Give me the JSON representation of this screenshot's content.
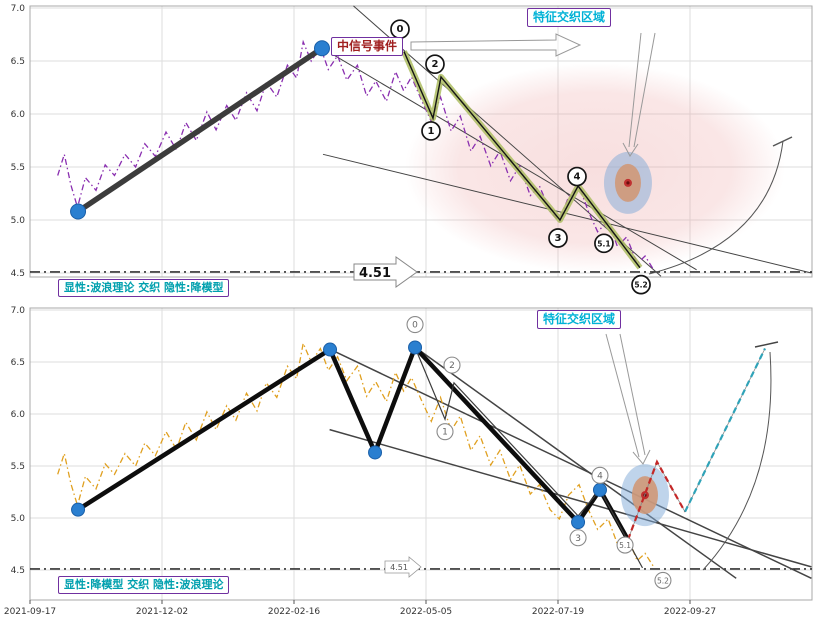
{
  "x_axis": {
    "labels": [
      "2021-09-17",
      "2021-12-02",
      "2022-02-16",
      "2022-05-05",
      "2022-07-19",
      "2022-09-27"
    ]
  },
  "y_axis": {
    "labels": [
      "7.0",
      "6.5",
      "6.0",
      "5.5",
      "5.0",
      "4.5"
    ],
    "values": [
      7.0,
      6.5,
      6.0,
      5.5,
      5.0,
      4.5
    ]
  },
  "panels": {
    "top": {
      "legend": "显性:波浪理论 交织 隐性:降模型",
      "signal_label": "中信号事件",
      "region_label": "特征交织区域",
      "hline_label": "4.51",
      "hline_value": 4.51
    },
    "bottom": {
      "legend": "显性:降模型 交织 隐性:波浪理论",
      "region_label": "特征交织区域",
      "hline_label": "4.51",
      "hline_value": 4.51
    }
  },
  "colors": {
    "purple_border": "#7030a0",
    "teal_text": "#00a0ae",
    "cyan_text": "#00b2d6",
    "signal_text": "#a02020",
    "price_top": "#8a2fb0",
    "price_bottom": "#e0a020",
    "model_dark": "#3c3c3c",
    "model_black": "#0d0d0d",
    "wave_halo": "#adbd62",
    "dot_blue": "#2a7fd0",
    "dot_edge": "#1a5fa8",
    "proj_red": "#c42828",
    "proj_teal": "#2fa3b8",
    "region_pink": "#eba0a0",
    "target_blue": "#7fa9d8",
    "target_tan": "#cf9878",
    "target_red": "#c03030"
  },
  "chart_data": [
    {
      "type": "line",
      "title": "",
      "y_range": [
        4.5,
        7.0
      ],
      "x_tick_labels": [
        "2021-09-17",
        "2021-12-02",
        "2022-02-16",
        "2022-05-05",
        "2022-07-19",
        "2022-09-27"
      ],
      "hline": 4.51,
      "annotations": [
        "中信号事件",
        "特征交织区域",
        "4.51",
        "显性:波浪理论 交织 隐性:降模型"
      ],
      "series": [
        {
          "name": "price-line-top",
          "style": "dashdot",
          "color": "#8a2fb0",
          "points": [
            [
              0.21,
              5.42
            ],
            [
              0.26,
              5.62
            ],
            [
              0.31,
              5.33
            ],
            [
              0.36,
              5.12
            ],
            [
              0.42,
              5.4
            ],
            [
              0.5,
              5.28
            ],
            [
              0.57,
              5.52
            ],
            [
              0.64,
              5.42
            ],
            [
              0.72,
              5.62
            ],
            [
              0.8,
              5.5
            ],
            [
              0.87,
              5.72
            ],
            [
              0.95,
              5.6
            ],
            [
              1.03,
              5.83
            ],
            [
              1.11,
              5.66
            ],
            [
              1.18,
              5.92
            ],
            [
              1.26,
              5.75
            ],
            [
              1.34,
              6.02
            ],
            [
              1.41,
              5.85
            ],
            [
              1.49,
              6.08
            ],
            [
              1.56,
              5.94
            ],
            [
              1.64,
              6.2
            ],
            [
              1.72,
              6.03
            ],
            [
              1.79,
              6.3
            ],
            [
              1.87,
              6.16
            ],
            [
              1.95,
              6.46
            ],
            [
              2.02,
              6.34
            ],
            [
              2.07,
              6.68
            ],
            [
              2.13,
              6.5
            ],
            [
              2.2,
              6.63
            ],
            [
              2.26,
              6.42
            ],
            [
              2.33,
              6.55
            ],
            [
              2.4,
              6.32
            ],
            [
              2.48,
              6.46
            ],
            [
              2.55,
              6.17
            ],
            [
              2.62,
              6.31
            ],
            [
              2.7,
              6.12
            ],
            [
              2.77,
              6.4
            ],
            [
              2.83,
              6.22
            ],
            [
              2.89,
              6.35
            ],
            [
              2.97,
              6.12
            ],
            [
              3.04,
              5.93
            ],
            [
              3.11,
              6.16
            ],
            [
              3.19,
              5.84
            ],
            [
              3.26,
              5.98
            ],
            [
              3.34,
              5.65
            ],
            [
              3.41,
              5.79
            ],
            [
              3.49,
              5.51
            ],
            [
              3.56,
              5.65
            ],
            [
              3.64,
              5.37
            ],
            [
              3.71,
              5.51
            ],
            [
              3.79,
              5.23
            ],
            [
              3.86,
              5.32
            ],
            [
              3.94,
              5.08
            ],
            [
              4.01,
              4.99
            ],
            [
              4.08,
              5.22
            ],
            [
              4.16,
              5.32
            ],
            [
              4.23,
              5.08
            ],
            [
              4.3,
              4.89
            ],
            [
              4.38,
              4.99
            ],
            [
              4.45,
              4.75
            ],
            [
              4.52,
              4.84
            ],
            [
              4.6,
              4.59
            ],
            [
              4.66,
              4.66
            ],
            [
              4.72,
              4.54
            ]
          ]
        },
        {
          "name": "impulse-up-line",
          "style": "thick",
          "color": "#3c3c3c",
          "points": [
            [
              0.364,
              5.08
            ],
            [
              2.212,
              6.62
            ]
          ]
        },
        {
          "name": "wave-0-5-line",
          "style": "wave",
          "color": "#adbd62",
          "points": [
            [
              2.833,
              6.59
            ],
            [
              3.053,
              5.96
            ],
            [
              3.114,
              6.35
            ],
            [
              4.015,
              5.0
            ],
            [
              4.152,
              5.32
            ],
            [
              4.621,
              4.55
            ]
          ]
        }
      ],
      "pivots": [
        [
          0.364,
          5.08
        ],
        [
          2.212,
          6.62
        ]
      ],
      "markers": [
        {
          "l": "0",
          "t": 2.803,
          "p": 6.8
        },
        {
          "l": "2",
          "t": 3.068,
          "p": 6.47
        },
        {
          "l": "1",
          "t": 3.038,
          "p": 5.84
        },
        {
          "l": "3",
          "t": 4.0,
          "p": 4.83
        },
        {
          "l": "4",
          "t": 4.144,
          "p": 5.41
        },
        {
          "l": "5.1",
          "t": 4.348,
          "p": 4.78
        },
        {
          "l": "5.2",
          "t": 4.629,
          "p": 4.39
        }
      ],
      "trendlines": [
        {
          "points": [
            [
              2.31,
              6.55
            ],
            [
              5.05,
              4.53
            ]
          ]
        },
        {
          "points": [
            [
              2.22,
              5.62
            ],
            [
              5.92,
              4.5
            ]
          ]
        },
        {
          "points": [
            [
              2.45,
              7.02
            ],
            [
              4.78,
              4.47
            ]
          ]
        }
      ],
      "regions": {
        "halo": {
          "t": 4.28,
          "p": 5.49,
          "rt": 1.44,
          "rp": 0.99
        },
        "target": {
          "t": 4.53,
          "p": 5.35
        }
      }
    },
    {
      "type": "line",
      "title": "",
      "y_range": [
        4.5,
        7.0
      ],
      "x_tick_labels": [
        "2021-09-17",
        "2021-12-02",
        "2022-02-16",
        "2022-05-05",
        "2022-07-19",
        "2022-09-27"
      ],
      "hline": 4.51,
      "annotations": [
        "特征交织区域",
        "4.51",
        "显性:降模型 交织 隐性:波浪理论"
      ],
      "series": [
        {
          "name": "price-line-bottom",
          "style": "dashdot",
          "color": "#e0a020",
          "points": [
            [
              0.21,
              5.42
            ],
            [
              0.26,
              5.62
            ],
            [
              0.31,
              5.33
            ],
            [
              0.36,
              5.12
            ],
            [
              0.42,
              5.4
            ],
            [
              0.5,
              5.28
            ],
            [
              0.57,
              5.52
            ],
            [
              0.64,
              5.42
            ],
            [
              0.72,
              5.62
            ],
            [
              0.8,
              5.5
            ],
            [
              0.87,
              5.72
            ],
            [
              0.95,
              5.6
            ],
            [
              1.03,
              5.83
            ],
            [
              1.11,
              5.66
            ],
            [
              1.18,
              5.92
            ],
            [
              1.26,
              5.75
            ],
            [
              1.34,
              6.02
            ],
            [
              1.41,
              5.85
            ],
            [
              1.49,
              6.08
            ],
            [
              1.56,
              5.94
            ],
            [
              1.64,
              6.2
            ],
            [
              1.72,
              6.03
            ],
            [
              1.79,
              6.3
            ],
            [
              1.87,
              6.16
            ],
            [
              1.95,
              6.46
            ],
            [
              2.02,
              6.34
            ],
            [
              2.07,
              6.68
            ],
            [
              2.13,
              6.5
            ],
            [
              2.2,
              6.63
            ],
            [
              2.26,
              6.42
            ],
            [
              2.33,
              6.55
            ],
            [
              2.4,
              6.32
            ],
            [
              2.48,
              6.46
            ],
            [
              2.55,
              6.17
            ],
            [
              2.62,
              6.31
            ],
            [
              2.7,
              6.12
            ],
            [
              2.77,
              6.4
            ],
            [
              2.83,
              6.22
            ],
            [
              2.89,
              6.35
            ],
            [
              2.97,
              6.12
            ],
            [
              3.04,
              5.93
            ],
            [
              3.11,
              6.16
            ],
            [
              3.19,
              5.84
            ],
            [
              3.26,
              5.98
            ],
            [
              3.34,
              5.65
            ],
            [
              3.41,
              5.79
            ],
            [
              3.49,
              5.51
            ],
            [
              3.56,
              5.65
            ],
            [
              3.64,
              5.37
            ],
            [
              3.71,
              5.51
            ],
            [
              3.79,
              5.23
            ],
            [
              3.86,
              5.32
            ],
            [
              3.94,
              5.08
            ],
            [
              4.01,
              4.99
            ],
            [
              4.08,
              5.22
            ],
            [
              4.16,
              5.32
            ],
            [
              4.23,
              5.08
            ],
            [
              4.3,
              4.89
            ],
            [
              4.38,
              4.99
            ],
            [
              4.45,
              4.75
            ],
            [
              4.52,
              4.84
            ],
            [
              4.6,
              4.59
            ],
            [
              4.66,
              4.66
            ],
            [
              4.72,
              4.54
            ]
          ]
        },
        {
          "name": "model-zigzag-line",
          "style": "model",
          "color": "#0d0d0d",
          "points": [
            [
              0.364,
              5.08
            ],
            [
              2.273,
              6.62
            ],
            [
              2.614,
              5.63
            ],
            [
              2.917,
              6.64
            ],
            [
              4.152,
              4.96
            ],
            [
              4.318,
              5.27
            ],
            [
              4.53,
              4.79
            ]
          ]
        },
        {
          "name": "hidden-wave-line",
          "style": "thin",
          "color": "#3c3c3c",
          "points": [
            [
              2.917,
              6.64
            ],
            [
              3.144,
              5.95
            ],
            [
              3.212,
              6.3
            ],
            [
              4.152,
              5.02
            ],
            [
              4.318,
              5.27
            ],
            [
              4.64,
              4.52
            ]
          ]
        },
        {
          "name": "projection-red",
          "style": "dashed",
          "color": "#c42828",
          "points": [
            [
              4.53,
              4.79
            ],
            [
              4.75,
              5.54
            ],
            [
              4.962,
              5.06
            ]
          ]
        },
        {
          "name": "projection-teal",
          "style": "dashed",
          "color": "#2fa3b8",
          "points": [
            [
              4.962,
              5.06
            ],
            [
              5.568,
              6.63
            ]
          ]
        }
      ],
      "pivots": [
        [
          0.364,
          5.08
        ],
        [
          2.273,
          6.62
        ],
        [
          2.614,
          5.63
        ],
        [
          2.917,
          6.64
        ],
        [
          4.152,
          4.96
        ],
        [
          4.318,
          5.27
        ]
      ],
      "markers": [
        {
          "l": "0",
          "t": 2.917,
          "p": 6.86
        },
        {
          "l": "2",
          "t": 3.197,
          "p": 6.47
        },
        {
          "l": "1",
          "t": 3.144,
          "p": 5.83
        },
        {
          "l": "3",
          "t": 4.152,
          "p": 4.81
        },
        {
          "l": "4",
          "t": 4.318,
          "p": 5.41
        },
        {
          "l": "5.1",
          "t": 4.508,
          "p": 4.74
        },
        {
          "l": "5.2",
          "t": 4.795,
          "p": 4.4
        }
      ],
      "trendlines": [
        {
          "points": [
            [
              2.31,
              6.6
            ],
            [
              5.92,
              4.42
            ]
          ]
        },
        {
          "points": [
            [
              2.27,
              5.85
            ],
            [
              5.92,
              4.53
            ]
          ]
        },
        {
          "points": [
            [
              2.92,
              6.64
            ],
            [
              5.35,
              4.42
            ]
          ]
        }
      ],
      "regions": {
        "target": {
          "t": 4.659,
          "p": 5.22
        }
      }
    }
  ]
}
